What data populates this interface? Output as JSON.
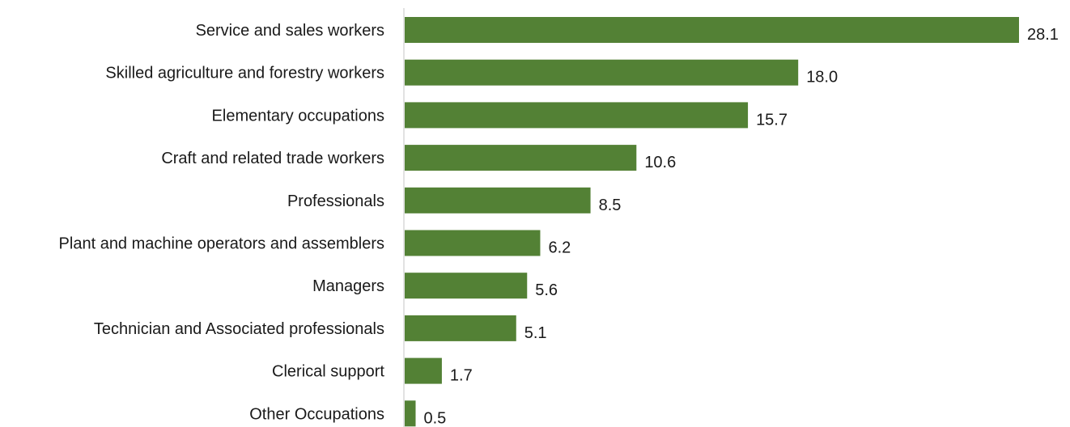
{
  "chart_data": {
    "type": "bar",
    "orientation": "horizontal",
    "categories": [
      "Service and sales workers",
      "Skilled agriculture and forestry workers",
      "Elementary occupations",
      "Craft and related trade workers",
      "Professionals",
      "Plant and machine operators and assemblers",
      "Managers",
      "Technician and Associated professionals",
      "Clerical support",
      "Other Occupations"
    ],
    "values": [
      28.1,
      18.0,
      15.7,
      10.6,
      8.5,
      6.2,
      5.6,
      5.1,
      1.7,
      0.5
    ],
    "value_labels": [
      "28.1",
      "18.0",
      "15.7",
      "10.6",
      "8.5",
      "6.2",
      "5.6",
      "5.1",
      "1.7",
      "0.5"
    ],
    "title": "",
    "xlabel": "",
    "ylabel": "",
    "xlim": [
      0,
      28.1
    ],
    "grid": false,
    "legend": "none",
    "bar_color": "#538135"
  }
}
